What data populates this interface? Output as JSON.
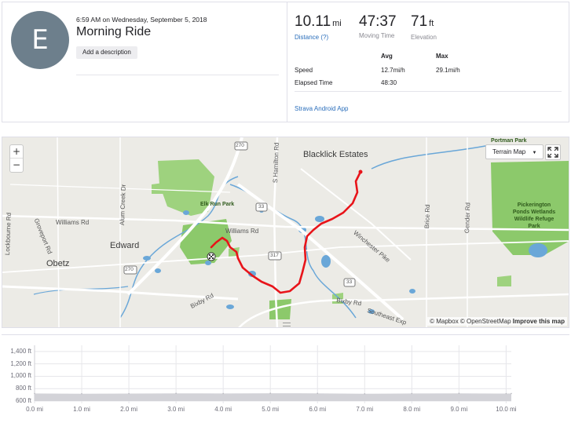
{
  "activity": {
    "avatar_initial": "E",
    "date": "6:59 AM on Wednesday, September 5, 2018",
    "title": "Morning Ride",
    "description_button": "Add a description"
  },
  "stats": {
    "distance": {
      "value": "10.11",
      "unit": "mi",
      "label": "Distance (?)"
    },
    "moving_time": {
      "value": "47:37",
      "label": "Moving Time"
    },
    "elevation": {
      "value": "71",
      "unit": "ft",
      "label": "Elevation"
    }
  },
  "more_stats": {
    "headers": {
      "avg": "Avg",
      "max": "Max"
    },
    "rows": [
      {
        "label": "Speed",
        "avg": "12.7mi/h",
        "max": "29.1mi/h"
      },
      {
        "label": "Elapsed Time",
        "avg": "48:30",
        "max": ""
      }
    ]
  },
  "device": {
    "app_link": "Strava Android App"
  },
  "map": {
    "zoom_in": "+",
    "zoom_out": "−",
    "terrain_button": "Terrain Map",
    "attribution": {
      "mapbox": "© Mapbox",
      "osm": "© OpenStreetMap",
      "improve": "Improve this map"
    },
    "places": {
      "blacklick": "Blacklick Estates",
      "edward": "Edward",
      "obetz": "Obetz",
      "elk_run_park": "Elk Run Park",
      "pickerington": "Pickerington Ponds Wetlands Wildlife Refuge Park",
      "portman_park": "Portman Park"
    },
    "roads": {
      "williams_rd_w": "Williams Rd",
      "williams_rd_e": "Williams Rd",
      "alum_creek": "Alum Creek Dr",
      "lockbourne": "Lockbourne Rd",
      "groveport": "Groveport Rd",
      "s_hamilton": "S Hamilton Rd",
      "winchester": "Winchester Pike",
      "brice": "Brice Rd",
      "gender": "Gender Rd",
      "bixby_w": "Bixby Rd",
      "bixby_e": "Bixby Rd",
      "southeast_exp": "Southeast Exp"
    },
    "shields": {
      "i270_top": "270",
      "i270_left": "270",
      "us33_a": "33",
      "us33_b": "33",
      "sr317": "317"
    },
    "colors": {
      "route": "#e8141a",
      "water": "#6aa7d8",
      "park": "#8cc96b",
      "background": "#ecebe6"
    }
  },
  "chart_data": {
    "type": "area",
    "x": [
      0,
      1,
      2,
      3,
      4,
      5,
      6,
      7,
      8,
      9,
      10,
      10.11
    ],
    "series": [
      {
        "values": [
          722,
          718,
          720,
          724,
          722,
          726,
          724,
          716,
          722,
          724,
          720,
          722
        ]
      }
    ],
    "xlabel": "",
    "ylabel": "",
    "y_ticks": [
      "600 ft",
      "800 ft",
      "1,000 ft",
      "1,200 ft",
      "1,400 ft"
    ],
    "x_ticks": [
      "0.0 mi",
      "1.0 mi",
      "2.0 mi",
      "3.0 mi",
      "4.0 mi",
      "5.0 mi",
      "6.0 mi",
      "7.0 mi",
      "8.0 mi",
      "9.0 mi",
      "10.0 mi"
    ],
    "ylim": [
      600,
      1500
    ],
    "xlim": [
      0,
      10.11
    ],
    "grid": true,
    "fill_color": "#d3d3d8"
  }
}
